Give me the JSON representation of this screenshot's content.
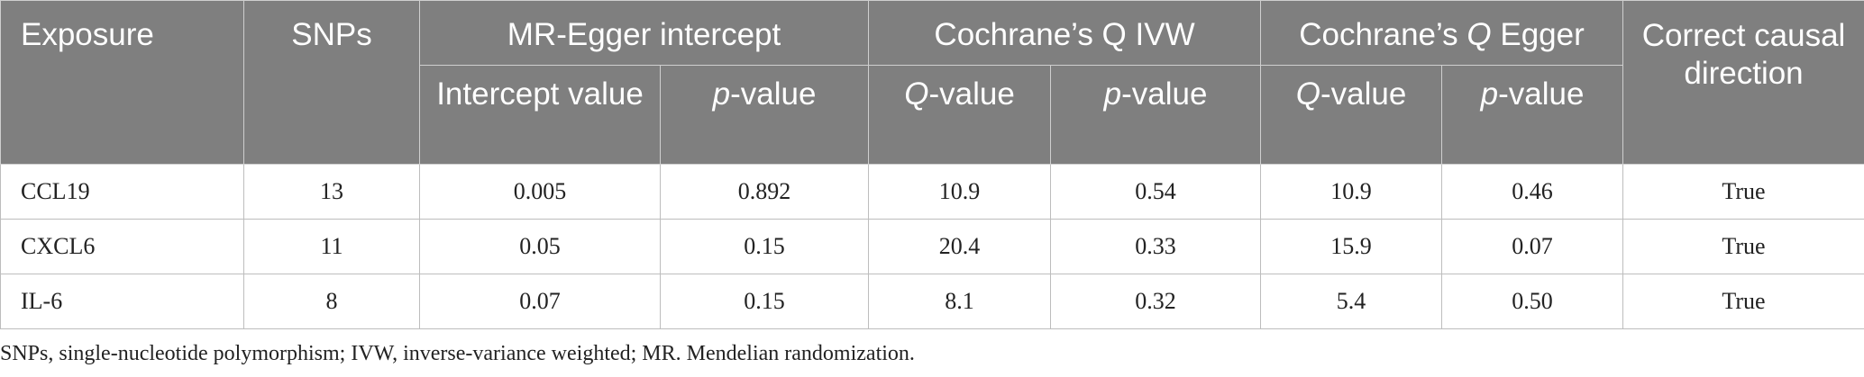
{
  "header": {
    "exposure": "Exposure",
    "snps": "SNPs",
    "mr_egger_intercept": "MR-Egger intercept",
    "cochrane_q_ivw": "Cochrane’s Q IVW",
    "cochrane_q_egger_prefix": "Cochrane’s ",
    "cochrane_q_egger_q": "Q",
    "cochrane_q_egger_suffix": " Egger",
    "correct_causal_direction": "Correct causal direction",
    "intercept_value": "Intercept value",
    "p_italic": "p",
    "p_suffix": "-value",
    "q_italic": "Q",
    "q_suffix": "-value"
  },
  "rows": [
    {
      "exposure": "CCL19",
      "snps": "13",
      "intercept": "0.005",
      "intercept_p": "0.892",
      "ivw_q": "10.9",
      "ivw_p": "0.54",
      "egger_q": "10.9",
      "egger_p": "0.46",
      "direction": "True"
    },
    {
      "exposure": "CXCL6",
      "snps": "11",
      "intercept": "0.05",
      "intercept_p": "0.15",
      "ivw_q": "20.4",
      "ivw_p": "0.33",
      "egger_q": "15.9",
      "egger_p": "0.07",
      "direction": "True"
    },
    {
      "exposure": "IL-6",
      "snps": "8",
      "intercept": "0.07",
      "intercept_p": "0.15",
      "ivw_q": "8.1",
      "ivw_p": "0.32",
      "egger_q": "5.4",
      "egger_p": "0.50",
      "direction": "True"
    }
  ],
  "footnote": "SNPs, single-nucleotide polymorphism; IVW, inverse-variance weighted; MR. Mendelian randomization."
}
